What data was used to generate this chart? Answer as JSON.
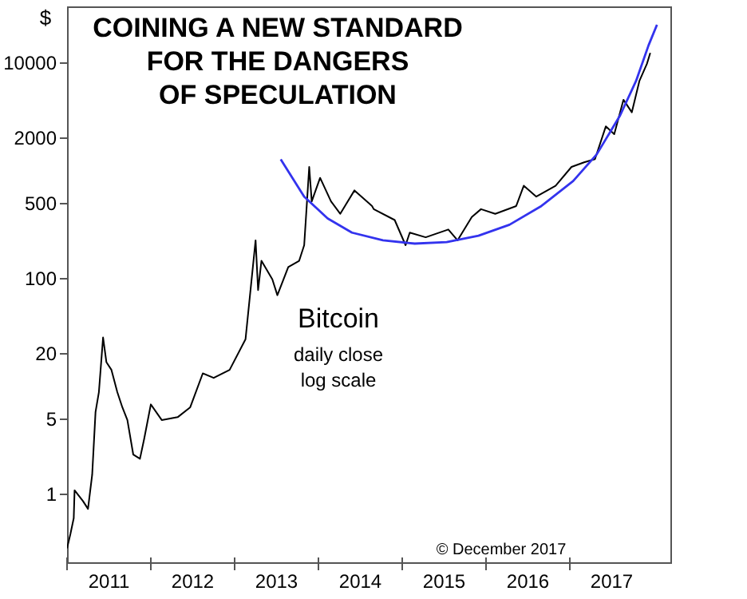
{
  "chart_data": {
    "type": "line",
    "title": "COINING A NEW STANDARD\nFOR THE DANGERS\nOF SPECULATION",
    "ylabel": "$",
    "log": "y",
    "grid": false,
    "marker": "none",
    "line_style": "solid",
    "xlim": [
      2011,
      2018.2
    ],
    "ylim": [
      0.23,
      33000
    ],
    "xticks": [
      {
        "value": 2011,
        "label": null
      },
      {
        "value": 2011.5,
        "label": "2011"
      },
      {
        "value": 2012,
        "label": null
      },
      {
        "value": 2012.5,
        "label": "2012"
      },
      {
        "value": 2013,
        "label": null
      },
      {
        "value": 2013.5,
        "label": "2013"
      },
      {
        "value": 2014,
        "label": null
      },
      {
        "value": 2014.5,
        "label": "2014"
      },
      {
        "value": 2015,
        "label": null
      },
      {
        "value": 2015.5,
        "label": "2015"
      },
      {
        "value": 2016,
        "label": null
      },
      {
        "value": 2016.5,
        "label": "2016"
      },
      {
        "value": 2017,
        "label": null
      },
      {
        "value": 2017.5,
        "label": "2017"
      }
    ],
    "yticks": [
      1,
      5,
      20,
      100,
      500,
      2000,
      10000
    ],
    "annotations": [
      "Bitcoin",
      "daily close",
      "log scale",
      "© December 2017"
    ],
    "series": [
      {
        "color": "#000000",
        "x": [
          2011.0,
          2011.04,
          2011.08,
          2011.09,
          2011.19,
          2011.25,
          2011.3,
          2011.34,
          2011.38,
          2011.43,
          2011.47,
          2011.53,
          2011.6,
          2011.66,
          2011.72,
          2011.79,
          2011.87,
          2011.92,
          2012.0,
          2012.13,
          2012.32,
          2012.47,
          2012.62,
          2012.75,
          2012.94,
          2013.13,
          2013.25,
          2013.28,
          2013.32,
          2013.45,
          2013.51,
          2013.64,
          2013.77,
          2013.83,
          2013.89,
          2013.92,
          2014.02,
          2014.15,
          2014.26,
          2014.43,
          2014.64,
          2014.66,
          2014.91,
          2015.04,
          2015.09,
          2015.28,
          2015.55,
          2015.66,
          2015.83,
          2015.94,
          2016.11,
          2016.36,
          2016.45,
          2016.6,
          2016.83,
          2017.02,
          2017.17,
          2017.3,
          2017.43,
          2017.53,
          2017.64,
          2017.74,
          2017.83,
          2017.92,
          2017.96
        ],
        "values": [
          0.31,
          0.42,
          0.59,
          1.07,
          0.85,
          0.72,
          1.49,
          5.7,
          8.7,
          28,
          16.5,
          14,
          8.7,
          6.3,
          4.8,
          2.3,
          2.1,
          3.2,
          6.7,
          4.8,
          5.1,
          6.3,
          13,
          11.8,
          14,
          27,
          223,
          77,
          144,
          97,
          69,
          126,
          144,
          201,
          1070,
          513,
          847,
          513,
          393,
          648,
          464,
          434,
          344,
          201,
          263,
          238,
          281,
          223,
          367,
          434,
          393,
          464,
          716,
          567,
          716,
          1070,
          1181,
          1262,
          2546,
          2154,
          4490,
          3436,
          6700,
          9680,
          12200
        ]
      },
      {
        "color": "#3333ee",
        "x": [
          2013.55,
          2013.83,
          2014.11,
          2014.4,
          2014.77,
          2015.15,
          2015.53,
          2015.91,
          2016.28,
          2016.66,
          2017.04,
          2017.32,
          2017.6,
          2017.79,
          2017.94,
          2018.04
        ],
        "values": [
          1260,
          567,
          356,
          263,
          223,
          208,
          215,
          246,
          311,
          464,
          792,
          1396,
          3215,
          6700,
          14400,
          22300
        ]
      }
    ]
  }
}
